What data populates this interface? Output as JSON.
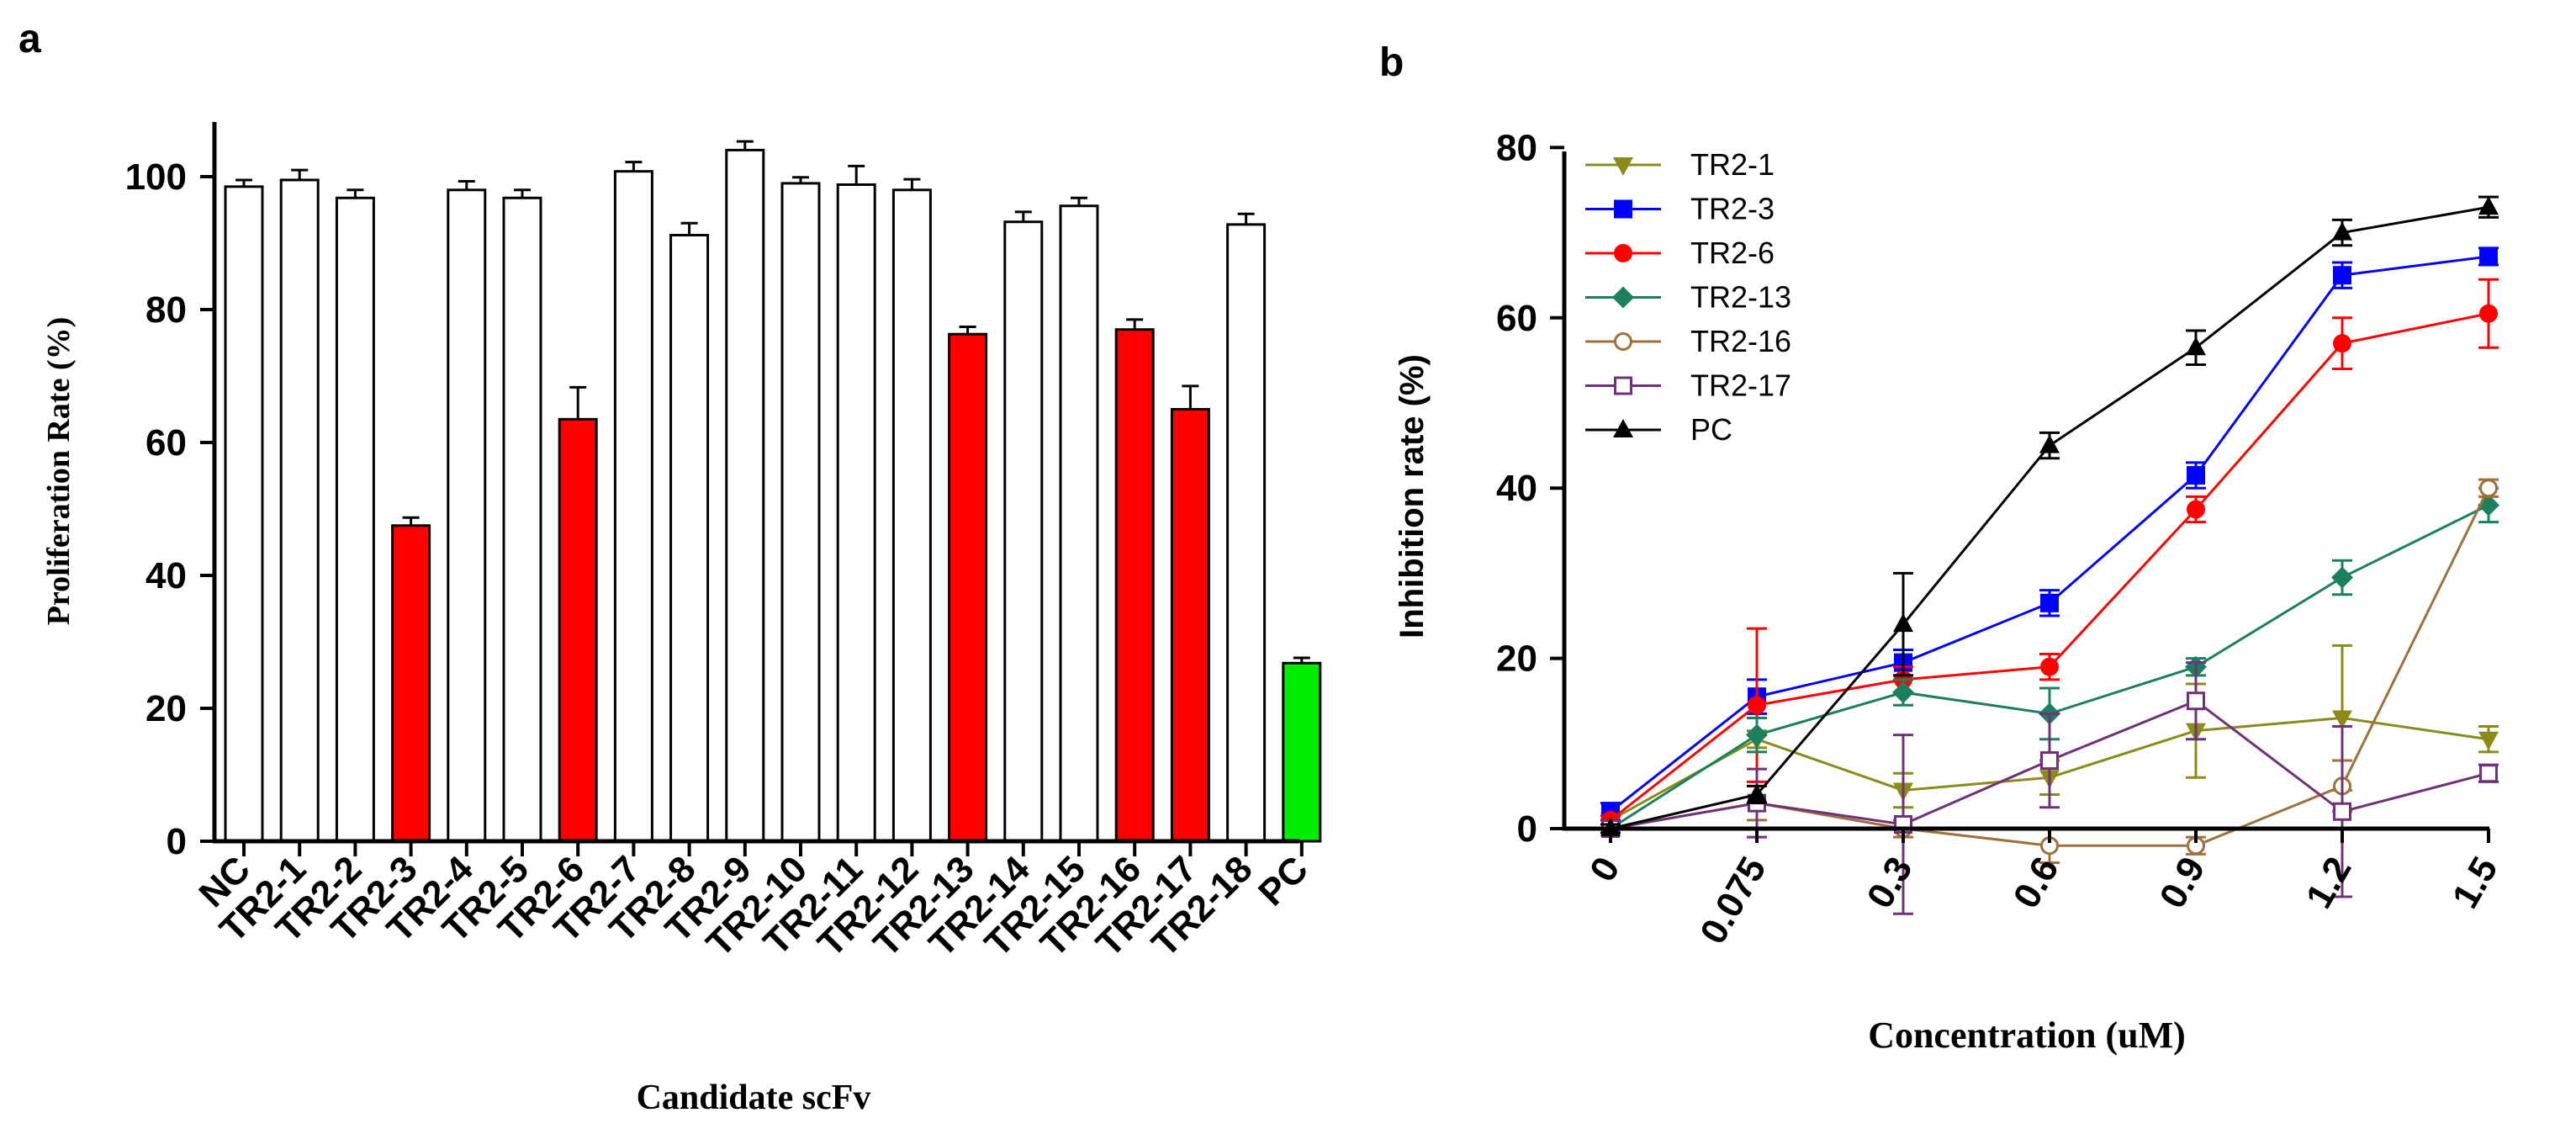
{
  "panel_labels": {
    "a": "a",
    "b": "b"
  },
  "chart_data": [
    {
      "type": "bar",
      "title": "",
      "xlabel": "Candidate scFv",
      "ylabel": "Proliferation Rate (%)",
      "ylim": [
        0,
        110
      ],
      "yticks": [
        0,
        20,
        40,
        60,
        80,
        100
      ],
      "grid": false,
      "categories": [
        "NC",
        "TR2-1",
        "TR2-2",
        "TR2-3",
        "TR2-4",
        "TR2-5",
        "TR2-6",
        "TR2-7",
        "TR2-8",
        "TR2-9",
        "TR2-10",
        "TR2-11",
        "TR2-12",
        "TR2-13",
        "TR2-14",
        "TR2-15",
        "TR2-16",
        "TR2-17",
        "TR2-18",
        "PC"
      ],
      "values": [
        98.5,
        99.5,
        96.8,
        47.5,
        98.0,
        96.8,
        63.5,
        100.8,
        91.2,
        104.0,
        99.0,
        98.8,
        98.0,
        76.3,
        93.2,
        95.6,
        77.0,
        65.0,
        92.8,
        26.8
      ],
      "errors": [
        1.0,
        1.5,
        1.2,
        1.2,
        1.3,
        1.2,
        4.8,
        1.4,
        1.8,
        1.3,
        0.9,
        2.8,
        1.6,
        1.1,
        1.5,
        1.2,
        1.5,
        3.5,
        1.6,
        0.8
      ],
      "colors": [
        "#ffffff",
        "#ffffff",
        "#ffffff",
        "#ff0000",
        "#ffffff",
        "#ffffff",
        "#ff0000",
        "#ffffff",
        "#ffffff",
        "#ffffff",
        "#ffffff",
        "#ffffff",
        "#ffffff",
        "#ff0000",
        "#ffffff",
        "#ffffff",
        "#ff0000",
        "#ff0000",
        "#ffffff",
        "#00ee00"
      ]
    },
    {
      "type": "line",
      "title": "",
      "xlabel": "Concentration (uM)",
      "ylabel": "Inhibition rate  (%)",
      "x": [
        "0",
        "0.075",
        "0.3",
        "0.6",
        "0.9",
        "1.2",
        "1.5"
      ],
      "ylim": [
        0,
        80
      ],
      "yticks": [
        0,
        20,
        40,
        60,
        80
      ],
      "grid": false,
      "legend_position": "top-left",
      "series": [
        {
          "name": "TR2-1",
          "color": "#8b8b1a",
          "marker": "triangle-down",
          "values": [
            1,
            10.5,
            4.5,
            6,
            11.5,
            13,
            10.5
          ],
          "errors": [
            0.5,
            1,
            2,
            2,
            5.5,
            8.5,
            1.5
          ]
        },
        {
          "name": "TR2-3",
          "color": "#0000ff",
          "marker": "square",
          "values": [
            2,
            15.5,
            19.5,
            26.5,
            41.5,
            65,
            67.2
          ],
          "errors": [
            1,
            2,
            1.5,
            1.5,
            1.5,
            1.5,
            1
          ]
        },
        {
          "name": "TR2-6",
          "color": "#ff0000",
          "marker": "circle",
          "values": [
            1,
            14.5,
            17.5,
            19,
            37.5,
            57,
            60.5
          ],
          "errors": [
            0.5,
            9,
            1.5,
            1.5,
            1.5,
            3,
            4
          ]
        },
        {
          "name": "TR2-13",
          "color": "#1a8060",
          "marker": "diamond",
          "values": [
            0,
            11,
            16,
            13.5,
            19,
            29.5,
            38
          ],
          "errors": [
            0.5,
            2,
            1.5,
            3,
            1,
            2,
            2
          ]
        },
        {
          "name": "TR2-16",
          "color": "#a0703a",
          "marker": "circle-open",
          "values": [
            0,
            3,
            0,
            -2,
            -2,
            5,
            40
          ],
          "errors": [
            0.5,
            2,
            1,
            2,
            1,
            3,
            1
          ]
        },
        {
          "name": "TR2-17",
          "color": "#70307a",
          "marker": "square-open",
          "values": [
            0,
            3,
            0.5,
            8,
            15,
            2,
            6.5
          ],
          "errors": [
            0.5,
            4,
            10.5,
            5.5,
            4.5,
            10,
            1
          ]
        },
        {
          "name": "PC",
          "color": "#000000",
          "marker": "triangle-up",
          "values": [
            0,
            4,
            24,
            45,
            56.5,
            70,
            73
          ],
          "errors": [
            0.5,
            1,
            6,
            1.5,
            2,
            1.5,
            1.2
          ]
        }
      ]
    }
  ]
}
